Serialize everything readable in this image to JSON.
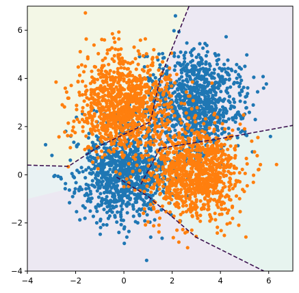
{
  "chart_data": {
    "type": "scatter",
    "title": "",
    "xlabel": "",
    "ylabel": "",
    "xlim": [
      -4,
      7
    ],
    "ylim": [
      -4,
      7
    ],
    "x_ticks": [
      -4,
      -2,
      0,
      2,
      4,
      6
    ],
    "y_ticks": [
      -4,
      -2,
      0,
      2,
      4,
      6
    ],
    "x_tick_labels": [
      "−4",
      "−2",
      "0",
      "2",
      "4",
      "6"
    ],
    "y_tick_labels": [
      "−4",
      "−2",
      "0",
      "2",
      "4",
      "6"
    ],
    "grid": false,
    "legend": "none",
    "series": [
      {
        "color": "#1f77b4",
        "marker": "circle",
        "clusters": [
          {
            "center": [
              0.0,
              0.0
            ],
            "spread": 1.0,
            "n": 1000
          },
          {
            "center": [
              3.0,
              3.0
            ],
            "spread": 1.0,
            "n": 1000
          }
        ]
      },
      {
        "color": "#ff7f0e",
        "marker": "circle",
        "clusters": [
          {
            "center": [
              0.0,
              3.0
            ],
            "spread": 1.0,
            "n": 1000
          },
          {
            "center": [
              3.0,
              0.0
            ],
            "spread": 1.0,
            "n": 1000
          }
        ]
      }
    ],
    "decision_boundary": {
      "color": "#3b0f4f",
      "style": "dashed",
      "lines": [
        [
          [
            -4.0,
            0.4
          ],
          [
            -2.3,
            0.35
          ],
          [
            -1.0,
            1.2
          ],
          [
            1.1,
            2.2
          ],
          [
            1.5,
            4.0
          ],
          [
            2.7,
            7.0
          ]
        ],
        [
          [
            0.7,
            -0.4
          ],
          [
            1.5,
            1.1
          ],
          [
            4.0,
            1.5
          ],
          [
            7.0,
            2.05
          ]
        ],
        [
          [
            -0.3,
            -0.1
          ],
          [
            1.0,
            -0.9
          ],
          [
            3.0,
            -2.6
          ],
          [
            5.8,
            -4.0
          ]
        ]
      ]
    },
    "background_regions": [
      {
        "color": "#f3f7e6",
        "polygon": [
          [
            -4,
            7
          ],
          [
            2.7,
            7
          ],
          [
            1.5,
            4
          ],
          [
            1.1,
            2.2
          ],
          [
            -1.0,
            1.2
          ],
          [
            -2.3,
            0.35
          ],
          [
            -4,
            0.4
          ]
        ]
      },
      {
        "color": "#e9f2f3",
        "polygon": [
          [
            -4,
            0.4
          ],
          [
            -2.3,
            0.35
          ],
          [
            -1.0,
            1.2
          ],
          [
            1.1,
            2.2
          ],
          [
            1.5,
            1.1
          ],
          [
            0.7,
            -0.4
          ],
          [
            -0.3,
            -0.1
          ],
          [
            1.0,
            -0.9
          ],
          [
            -4,
            -4
          ]
        ]
      },
      {
        "color": "#ede9f3",
        "polygon": [
          [
            2.7,
            7
          ],
          [
            7,
            7
          ],
          [
            7,
            2.05
          ],
          [
            4.0,
            1.5
          ],
          [
            1.5,
            1.1
          ],
          [
            1.1,
            2.2
          ],
          [
            1.5,
            4.0
          ]
        ]
      },
      {
        "color": "#e7f4ef",
        "polygon": [
          [
            1.5,
            1.1
          ],
          [
            4.0,
            1.5
          ],
          [
            7,
            2.05
          ],
          [
            7,
            -4
          ],
          [
            5.8,
            -4
          ],
          [
            3.0,
            -2.6
          ],
          [
            1.0,
            -0.9
          ],
          [
            0.7,
            -0.4
          ]
        ]
      },
      {
        "color": "#ece8f2",
        "polygon": [
          [
            -4,
            -4
          ],
          [
            5.8,
            -4
          ],
          [
            3.0,
            -2.6
          ],
          [
            1.0,
            -0.9
          ],
          [
            -0.3,
            -0.1
          ],
          [
            -4,
            -1.0
          ]
        ]
      }
    ]
  }
}
